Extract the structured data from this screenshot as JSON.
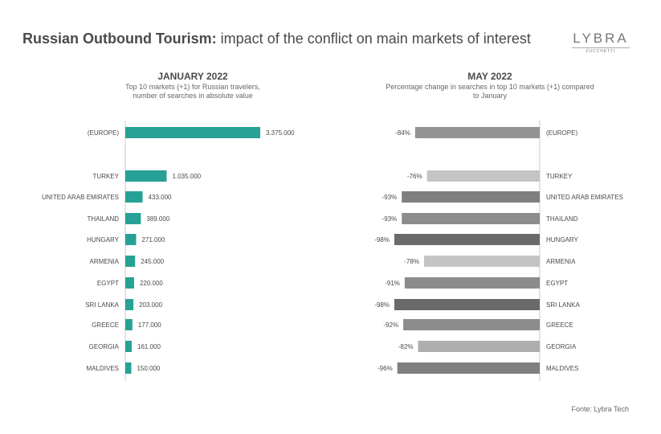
{
  "header": {
    "title_bold": "Russian Outbound Tourism:",
    "title_rest": "impact of the conflict on main markets of interest",
    "logo_main": "LYBRA",
    "logo_sub": "ZUCCHETTI"
  },
  "source": "Fonte: Lybra Tech",
  "colors": {
    "teal": "#27a195",
    "text": "#4a4a4a",
    "axis": "#c8c8c8"
  },
  "chart_data": [
    {
      "type": "bar",
      "orientation": "horizontal",
      "title": "JANUARY 2022",
      "subtitle_line1": "Top 10 markets (+1) for Russian travelers,",
      "subtitle_line2": "number of searches in absolute value",
      "categories": [
        "(EUROPE)",
        "TURKEY",
        "UNITED ARAB EMIRATES",
        "THAILAND",
        "HUNGARY",
        "ARMENIA",
        "EGYPT",
        "SRI LANKA",
        "GREECE",
        "GEORGIA",
        "MALDIVES"
      ],
      "values": [
        3375000,
        1035000,
        433000,
        389000,
        271000,
        245000,
        220000,
        203000,
        177000,
        161000,
        150000
      ],
      "labels": [
        "3.375.000",
        "1.035.000",
        "433.000",
        "389.000",
        "271.000",
        "245.000",
        "220.000",
        "203.000",
        "177.000",
        "161.000",
        "150.000"
      ],
      "color": "#27a195"
    },
    {
      "type": "bar",
      "orientation": "horizontal",
      "title": "MAY 2022",
      "subtitle_line1": "Percentage change in searches in top 10 markets (+1) compared",
      "subtitle_line2": "to January",
      "categories": [
        "(EUROPE)",
        "TURKEY",
        "UNITED ARAB EMIRATES",
        "THAILAND",
        "HUNGARY",
        "ARMENIA",
        "EGYPT",
        "SRI LANKA",
        "GREECE",
        "GEORGIA",
        "MALDIVES"
      ],
      "values": [
        -84,
        -76,
        -93,
        -93,
        -98,
        -78,
        -91,
        -98,
        -92,
        -82,
        -96
      ],
      "labels": [
        "-84%",
        "-76%",
        "-93%",
        "-93%",
        "-98%",
        "-78%",
        "-91%",
        "-98%",
        "-92%",
        "-82%",
        "-96%"
      ],
      "colors": [
        "#949494",
        "#c4c4c4",
        "#7f7f7f",
        "#8c8c8c",
        "#6a6a6a",
        "#c4c4c4",
        "#8c8c8c",
        "#6a6a6a",
        "#8c8c8c",
        "#aeaeae",
        "#7f7f7f"
      ]
    }
  ]
}
